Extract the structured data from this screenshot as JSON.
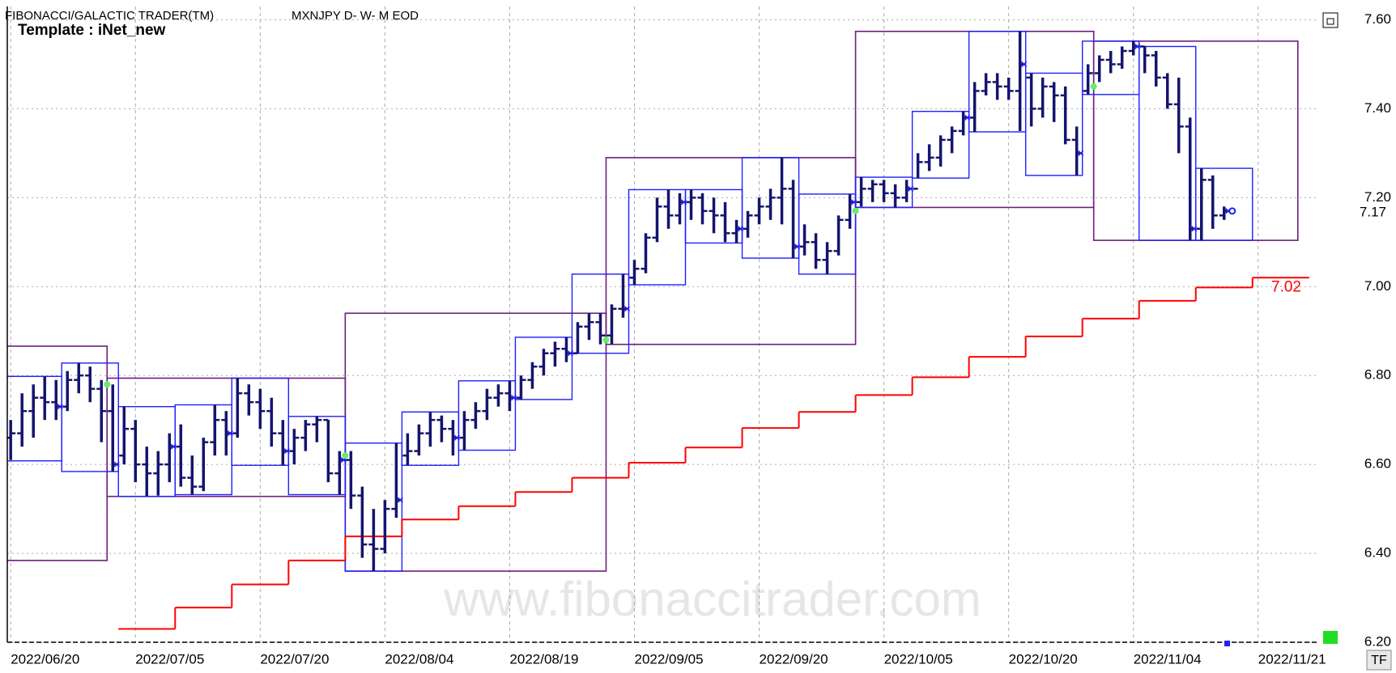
{
  "chart_data": {
    "type": "ohlc",
    "title": "FIBONACCI/GALACTIC TRADER(TM)",
    "subtitle": "MXNJPY D- W- M EOD",
    "annotations": [
      "Template : iNet_new",
      "www.fibonaccitrader.com",
      "TF"
    ],
    "grid": true,
    "xlim": [
      -0.3,
      115.3
    ],
    "xticks": [
      {
        "value": 0,
        "label": "2022/06/20"
      },
      {
        "value": 11,
        "label": "2022/07/05"
      },
      {
        "value": 22,
        "label": "2022/07/20"
      },
      {
        "value": 33,
        "label": "2022/08/04"
      },
      {
        "value": 44,
        "label": "2022/08/19"
      },
      {
        "value": 55,
        "label": "2022/09/05"
      },
      {
        "value": 66,
        "label": "2022/09/20"
      },
      {
        "value": 77,
        "label": "2022/10/05"
      },
      {
        "value": 88,
        "label": "2022/10/20"
      },
      {
        "value": 99,
        "label": "2022/11/04"
      },
      {
        "value": 110,
        "label": "2022/11/21"
      }
    ],
    "ylim": [
      6.2,
      7.63
    ],
    "yticks": [
      {
        "value": 6.2,
        "label": "6.20"
      },
      {
        "value": 6.4,
        "label": "6.40"
      },
      {
        "value": 6.6,
        "label": "6.60"
      },
      {
        "value": 6.8,
        "label": "6.80"
      },
      {
        "value": 7.0,
        "label": "7.00"
      },
      {
        "value": 7.2,
        "label": "7.20"
      },
      {
        "value": 7.4,
        "label": "7.40"
      },
      {
        "value": 7.6,
        "label": "7.60"
      }
    ],
    "color": "#14146e",
    "bars": [
      [
        6.66,
        6.7,
        6.61,
        6.67
      ],
      [
        6.67,
        6.76,
        6.64,
        6.72
      ],
      [
        6.72,
        6.78,
        6.66,
        6.75
      ],
      [
        6.75,
        6.798,
        6.7,
        6.74
      ],
      [
        6.74,
        6.79,
        6.7,
        6.73
      ],
      [
        6.73,
        6.81,
        6.72,
        6.79
      ],
      [
        6.79,
        6.828,
        6.76,
        6.8
      ],
      [
        6.8,
        6.82,
        6.74,
        6.77
      ],
      [
        6.77,
        6.79,
        6.65,
        6.72
      ],
      [
        6.72,
        6.78,
        6.584,
        6.6
      ],
      [
        6.62,
        6.73,
        6.6,
        6.68
      ],
      [
        6.68,
        6.7,
        6.56,
        6.6
      ],
      [
        6.6,
        6.64,
        6.528,
        6.58
      ],
      [
        6.58,
        6.63,
        6.53,
        6.6
      ],
      [
        6.6,
        6.67,
        6.56,
        6.64
      ],
      [
        6.64,
        6.69,
        6.55,
        6.57
      ],
      [
        6.57,
        6.62,
        6.532,
        6.55
      ],
      [
        6.55,
        6.66,
        6.54,
        6.65
      ],
      [
        6.65,
        6.734,
        6.62,
        6.7
      ],
      [
        6.7,
        6.72,
        6.62,
        6.67
      ],
      [
        6.67,
        6.794,
        6.66,
        6.76
      ],
      [
        6.76,
        6.78,
        6.71,
        6.74
      ],
      [
        6.74,
        6.77,
        6.68,
        6.72
      ],
      [
        6.72,
        6.75,
        6.64,
        6.67
      ],
      [
        6.67,
        6.7,
        6.598,
        6.63
      ],
      [
        6.63,
        6.68,
        6.6,
        6.66
      ],
      [
        6.66,
        6.7,
        6.63,
        6.69
      ],
      [
        6.69,
        6.708,
        6.65,
        6.7
      ],
      [
        6.7,
        6.7,
        6.56,
        6.58
      ],
      [
        6.58,
        6.63,
        6.532,
        6.61
      ],
      [
        6.61,
        6.63,
        6.5,
        6.53
      ],
      [
        6.53,
        6.55,
        6.39,
        6.42
      ],
      [
        6.42,
        6.5,
        6.36,
        6.41
      ],
      [
        6.41,
        6.52,
        6.4,
        6.5
      ],
      [
        6.5,
        6.648,
        6.48,
        6.52
      ],
      [
        6.62,
        6.67,
        6.598,
        6.63
      ],
      [
        6.63,
        6.69,
        6.62,
        6.67
      ],
      [
        6.67,
        6.718,
        6.64,
        6.7
      ],
      [
        6.7,
        6.71,
        6.65,
        6.68
      ],
      [
        6.68,
        6.7,
        6.62,
        6.66
      ],
      [
        6.66,
        6.72,
        6.632,
        6.7
      ],
      [
        6.7,
        6.74,
        6.68,
        6.72
      ],
      [
        6.72,
        6.77,
        6.7,
        6.75
      ],
      [
        6.75,
        6.78,
        6.73,
        6.76
      ],
      [
        6.76,
        6.788,
        6.72,
        6.75
      ],
      [
        6.75,
        6.8,
        6.746,
        6.79
      ],
      [
        6.79,
        6.83,
        6.77,
        6.82
      ],
      [
        6.82,
        6.86,
        6.8,
        6.85
      ],
      [
        6.85,
        6.876,
        6.82,
        6.86
      ],
      [
        6.86,
        6.886,
        6.83,
        6.85
      ],
      [
        6.85,
        6.92,
        6.85,
        6.91
      ],
      [
        6.91,
        6.94,
        6.88,
        6.92
      ],
      [
        6.92,
        6.94,
        6.87,
        6.89
      ],
      [
        6.89,
        6.96,
        6.87,
        6.95
      ],
      [
        6.95,
        7.028,
        6.93,
        6.95
      ],
      [
        7.02,
        7.06,
        7.004,
        7.04
      ],
      [
        7.04,
        7.12,
        7.03,
        7.11
      ],
      [
        7.11,
        7.2,
        7.1,
        7.18
      ],
      [
        7.18,
        7.218,
        7.13,
        7.16
      ],
      [
        7.16,
        7.21,
        7.14,
        7.19
      ],
      [
        7.19,
        7.218,
        7.15,
        7.2
      ],
      [
        7.2,
        7.21,
        7.14,
        7.17
      ],
      [
        7.17,
        7.2,
        7.12,
        7.16
      ],
      [
        7.16,
        7.19,
        7.1,
        7.12
      ],
      [
        7.12,
        7.15,
        7.098,
        7.13
      ],
      [
        7.13,
        7.17,
        7.11,
        7.16
      ],
      [
        7.16,
        7.2,
        7.14,
        7.18
      ],
      [
        7.18,
        7.22,
        7.15,
        7.2
      ],
      [
        7.2,
        7.29,
        7.14,
        7.22
      ],
      [
        7.22,
        7.24,
        7.064,
        7.09
      ],
      [
        7.09,
        7.14,
        7.07,
        7.1
      ],
      [
        7.1,
        7.12,
        7.04,
        7.06
      ],
      [
        7.06,
        7.1,
        7.028,
        7.08
      ],
      [
        7.08,
        7.16,
        7.07,
        7.15
      ],
      [
        7.15,
        7.208,
        7.13,
        7.19
      ],
      [
        7.19,
        7.246,
        7.18,
        7.22
      ],
      [
        7.22,
        7.24,
        7.19,
        7.23
      ],
      [
        7.23,
        7.24,
        7.19,
        7.21
      ],
      [
        7.21,
        7.23,
        7.178,
        7.2
      ],
      [
        7.2,
        7.24,
        7.19,
        7.22
      ],
      [
        7.22,
        7.3,
        7.244,
        7.28
      ],
      [
        7.28,
        7.32,
        7.26,
        7.29
      ],
      [
        7.29,
        7.34,
        7.27,
        7.33
      ],
      [
        7.33,
        7.36,
        7.3,
        7.35
      ],
      [
        7.35,
        7.394,
        7.34,
        7.38
      ],
      [
        7.38,
        7.46,
        7.348,
        7.44
      ],
      [
        7.44,
        7.48,
        7.43,
        7.46
      ],
      [
        7.46,
        7.48,
        7.42,
        7.45
      ],
      [
        7.45,
        7.47,
        7.42,
        7.44
      ],
      [
        7.44,
        7.574,
        7.35,
        7.5
      ],
      [
        7.47,
        7.48,
        7.36,
        7.4
      ],
      [
        7.4,
        7.47,
        7.38,
        7.45
      ],
      [
        7.45,
        7.46,
        7.37,
        7.43
      ],
      [
        7.43,
        7.45,
        7.32,
        7.33
      ],
      [
        7.33,
        7.36,
        7.25,
        7.3
      ],
      [
        7.44,
        7.5,
        7.432,
        7.48
      ],
      [
        7.48,
        7.52,
        7.46,
        7.51
      ],
      [
        7.51,
        7.53,
        7.48,
        7.5
      ],
      [
        7.5,
        7.54,
        7.49,
        7.53
      ],
      [
        7.53,
        7.552,
        7.52,
        7.54
      ],
      [
        7.54,
        7.54,
        7.48,
        7.52
      ],
      [
        7.52,
        7.53,
        7.45,
        7.47
      ],
      [
        7.47,
        7.48,
        7.4,
        7.41
      ],
      [
        7.41,
        7.47,
        7.3,
        7.36
      ],
      [
        7.36,
        7.38,
        7.104,
        7.13
      ],
      [
        7.13,
        7.266,
        7.104,
        7.24
      ],
      [
        7.24,
        7.25,
        7.13,
        7.16
      ],
      [
        7.16,
        7.18,
        7.15,
        7.17
      ]
    ],
    "weekly": {
      "color": "#1f1fff",
      "high": [
        6.798,
        6.828,
        6.73,
        6.734,
        6.794,
        6.708,
        6.648,
        6.718,
        6.788,
        6.886,
        7.028,
        7.218,
        7.218,
        7.29,
        7.208,
        7.246,
        7.394,
        7.574,
        7.48,
        7.552,
        7.54,
        7.266
      ],
      "low": [
        6.608,
        6.584,
        6.528,
        6.532,
        6.598,
        6.532,
        6.36,
        6.598,
        6.632,
        6.746,
        6.85,
        7.004,
        7.098,
        7.064,
        7.028,
        7.178,
        7.244,
        7.348,
        7.25,
        7.432,
        7.104,
        7.104
      ]
    },
    "monthly": {
      "color": "#6b1f7a",
      "start": [
        -13,
        9,
        30,
        53,
        75,
        96
      ],
      "end": [
        8,
        29,
        52,
        74,
        95,
        113
      ],
      "high": [
        6.866,
        6.794,
        6.94,
        7.29,
        7.574,
        7.552
      ],
      "low": [
        6.384,
        6.528,
        6.36,
        6.87,
        7.178,
        7.104
      ]
    },
    "steps": {
      "color": "#ff0000",
      "x": [
        10,
        15,
        20,
        25,
        30,
        35,
        40,
        45,
        50,
        55,
        60,
        65,
        70,
        75,
        80,
        85,
        90,
        95,
        100,
        105,
        110
      ],
      "values": [
        6.23,
        6.278,
        6.33,
        6.384,
        6.438,
        6.476,
        6.506,
        6.538,
        6.57,
        6.604,
        6.638,
        6.682,
        6.718,
        6.756,
        6.796,
        6.842,
        6.888,
        6.928,
        6.968,
        6.998,
        7.02
      ]
    },
    "month_open": {
      "color": "#66ee66",
      "x": [
        9,
        30,
        53,
        75,
        96
      ],
      "values": [
        6.78,
        6.62,
        6.88,
        7.17,
        7.45
      ]
    },
    "last_price": 7.17,
    "step_label": 7.02
  }
}
